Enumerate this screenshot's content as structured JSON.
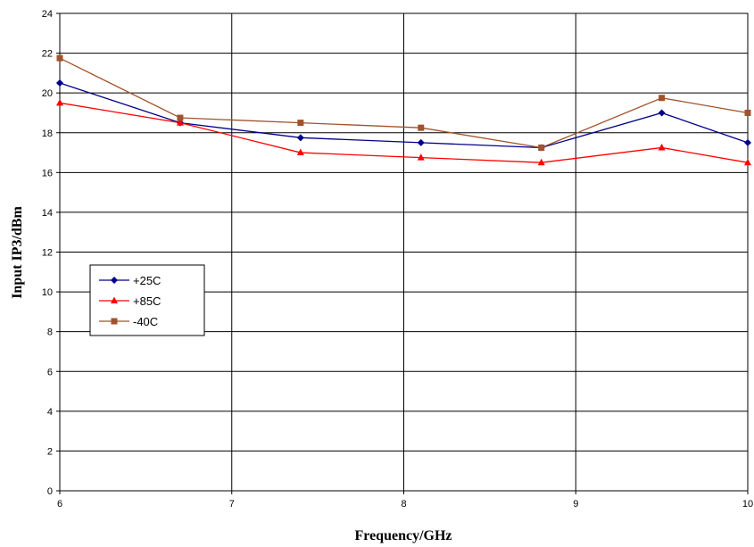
{
  "chart_data": {
    "type": "line",
    "xlabel": "Frequency/GHz",
    "ylabel": "Input IP3/dBm",
    "xlim": [
      6,
      10
    ],
    "ylim": [
      0,
      24
    ],
    "x_ticks": [
      6,
      7,
      8,
      9,
      10
    ],
    "y_ticks": [
      0,
      2,
      4,
      6,
      8,
      10,
      12,
      14,
      16,
      18,
      20,
      22,
      24
    ],
    "grid": true,
    "legend_position": "left-middle",
    "series": [
      {
        "name": "+25C",
        "color": "#00008B",
        "marker": "diamond",
        "x": [
          6,
          6.7,
          7.4,
          8.1,
          8.8,
          9.5,
          10
        ],
        "y": [
          20.5,
          18.5,
          17.75,
          17.5,
          17.25,
          19.0,
          17.5
        ]
      },
      {
        "name": "+85C",
        "color": "#FF0000",
        "marker": "triangle",
        "x": [
          6,
          6.7,
          7.4,
          8.1,
          8.8,
          9.5,
          10
        ],
        "y": [
          19.5,
          18.5,
          17.0,
          16.75,
          16.5,
          17.25,
          16.5
        ]
      },
      {
        "name": "-40C",
        "color": "#A0522D",
        "marker": "square",
        "x": [
          6,
          6.7,
          7.4,
          8.1,
          8.8,
          9.5,
          10
        ],
        "y": [
          21.75,
          18.75,
          18.5,
          18.25,
          17.25,
          19.75,
          19.0
        ]
      }
    ]
  }
}
